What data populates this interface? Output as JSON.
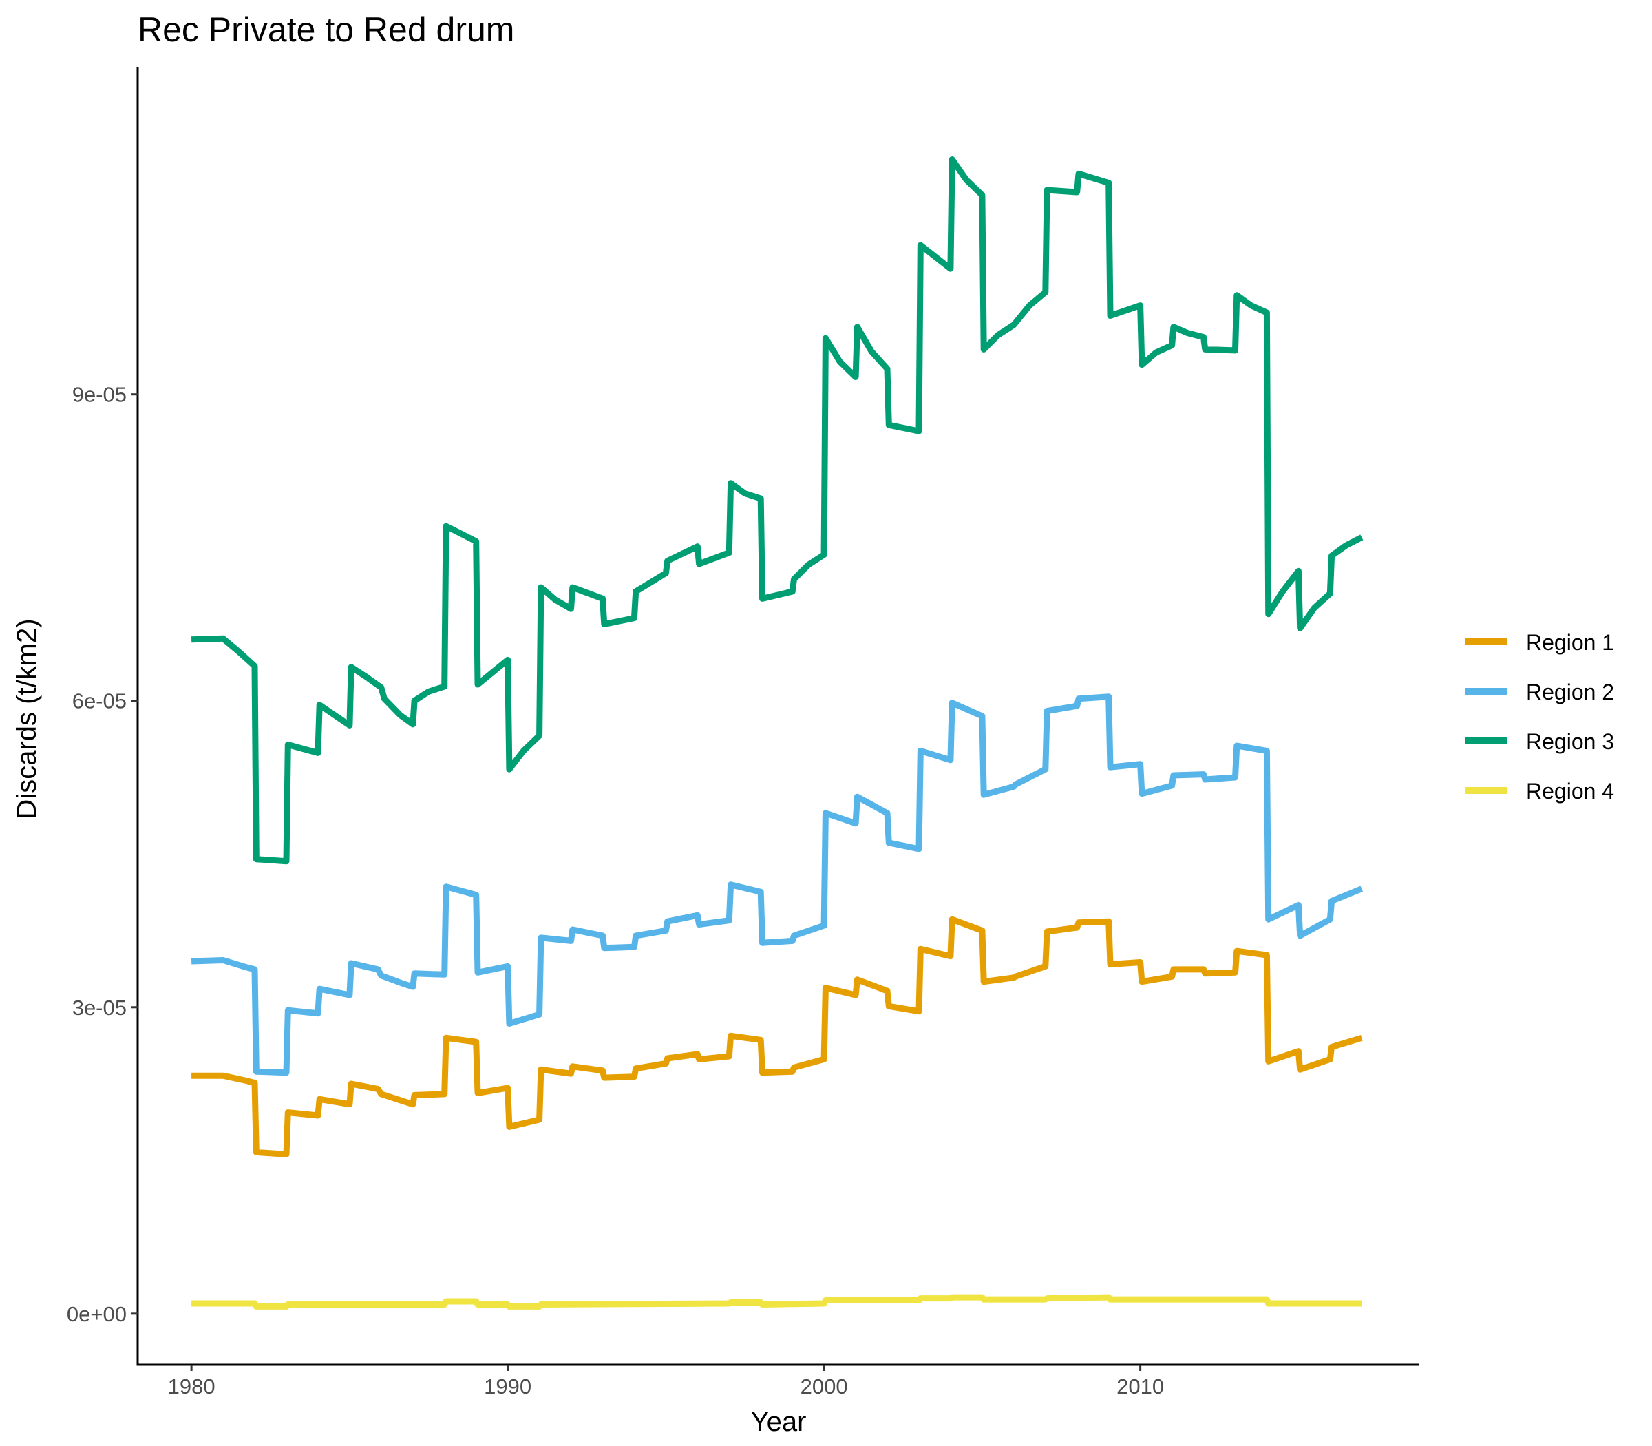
{
  "chart_data": {
    "type": "line",
    "title": "Rec Private to Red drum",
    "xlabel": "Year",
    "ylabel": "Discards (t/km2)",
    "xlim": [
      1978.3,
      2018.8
    ],
    "ylim": [
      -5e-06,
      0.000122
    ],
    "x_ticks": [
      {
        "value": 1980,
        "label": "1980"
      },
      {
        "value": 1990,
        "label": "1990"
      },
      {
        "value": 2000,
        "label": "2000"
      },
      {
        "value": 2010,
        "label": "2010"
      }
    ],
    "y_ticks": [
      {
        "value": 0,
        "label": "0e+00"
      },
      {
        "value": 3e-05,
        "label": "3e-05"
      },
      {
        "value": 6e-05,
        "label": "6e-05"
      },
      {
        "value": 9e-05,
        "label": "9e-05"
      }
    ],
    "grid": false,
    "legend": {
      "placement": "right"
    },
    "series": [
      {
        "name": "Region 1",
        "color": "#E69F00",
        "points": [
          [
            1980.0,
            2.33e-05
          ],
          [
            1981.0,
            2.33e-05
          ],
          [
            1981.75,
            2.28e-05
          ],
          [
            1982.0,
            2.26e-05
          ],
          [
            1982.05,
            1.58e-05
          ],
          [
            1983.0,
            1.56e-05
          ],
          [
            1983.05,
            1.97e-05
          ],
          [
            1984.0,
            1.94e-05
          ],
          [
            1984.05,
            2.1e-05
          ],
          [
            1985.0,
            2.05e-05
          ],
          [
            1985.05,
            2.25e-05
          ],
          [
            1985.9,
            2.2e-05
          ],
          [
            1986.0,
            2.15e-05
          ],
          [
            1986.7,
            2.08e-05
          ],
          [
            1987.0,
            2.05e-05
          ],
          [
            1987.05,
            2.14e-05
          ],
          [
            1988.0,
            2.15e-05
          ],
          [
            1988.05,
            2.7e-05
          ],
          [
            1989.0,
            2.66e-05
          ],
          [
            1989.05,
            2.16e-05
          ],
          [
            1990.0,
            2.21e-05
          ],
          [
            1990.05,
            1.83e-05
          ],
          [
            1991.0,
            1.9e-05
          ],
          [
            1991.05,
            2.39e-05
          ],
          [
            1992.0,
            2.35e-05
          ],
          [
            1992.05,
            2.42e-05
          ],
          [
            1993.0,
            2.38e-05
          ],
          [
            1993.05,
            2.31e-05
          ],
          [
            1994.0,
            2.32e-05
          ],
          [
            1994.05,
            2.4e-05
          ],
          [
            1995.0,
            2.45e-05
          ],
          [
            1995.05,
            2.5e-05
          ],
          [
            1996.0,
            2.54e-05
          ],
          [
            1996.05,
            2.49e-05
          ],
          [
            1997.0,
            2.52e-05
          ],
          [
            1997.05,
            2.72e-05
          ],
          [
            1998.0,
            2.68e-05
          ],
          [
            1998.05,
            2.36e-05
          ],
          [
            1999.0,
            2.37e-05
          ],
          [
            1999.05,
            2.41e-05
          ],
          [
            2000.0,
            2.49e-05
          ],
          [
            2000.05,
            3.19e-05
          ],
          [
            2001.0,
            3.12e-05
          ],
          [
            2001.05,
            3.27e-05
          ],
          [
            2002.0,
            3.16e-05
          ],
          [
            2002.05,
            3.01e-05
          ],
          [
            2003.0,
            2.96e-05
          ],
          [
            2003.05,
            3.57e-05
          ],
          [
            2004.0,
            3.5e-05
          ],
          [
            2004.05,
            3.86e-05
          ],
          [
            2005.0,
            3.75e-05
          ],
          [
            2005.05,
            3.25e-05
          ],
          [
            2006.0,
            3.29e-05
          ],
          [
            2006.05,
            3.3e-05
          ],
          [
            2007.0,
            3.4e-05
          ],
          [
            2007.05,
            3.74e-05
          ],
          [
            2008.0,
            3.78e-05
          ],
          [
            2008.05,
            3.83e-05
          ],
          [
            2009.0,
            3.84e-05
          ],
          [
            2009.05,
            3.42e-05
          ],
          [
            2010.0,
            3.44e-05
          ],
          [
            2010.05,
            3.25e-05
          ],
          [
            2011.0,
            3.3e-05
          ],
          [
            2011.05,
            3.37e-05
          ],
          [
            2012.0,
            3.37e-05
          ],
          [
            2012.05,
            3.33e-05
          ],
          [
            2013.0,
            3.34e-05
          ],
          [
            2013.05,
            3.55e-05
          ],
          [
            2014.0,
            3.51e-05
          ],
          [
            2014.05,
            2.47e-05
          ],
          [
            2015.0,
            2.57e-05
          ],
          [
            2015.05,
            2.39e-05
          ],
          [
            2016.0,
            2.49e-05
          ],
          [
            2016.05,
            2.61e-05
          ],
          [
            2017.0,
            2.7e-05
          ]
        ]
      },
      {
        "name": "Region 2",
        "color": "#56B4E9",
        "points": [
          [
            1980.0,
            3.45e-05
          ],
          [
            1981.0,
            3.46e-05
          ],
          [
            1981.75,
            3.39e-05
          ],
          [
            1982.0,
            3.37e-05
          ],
          [
            1982.05,
            2.37e-05
          ],
          [
            1983.0,
            2.36e-05
          ],
          [
            1983.05,
            2.97e-05
          ],
          [
            1984.0,
            2.94e-05
          ],
          [
            1984.05,
            3.18e-05
          ],
          [
            1985.0,
            3.12e-05
          ],
          [
            1985.05,
            3.43e-05
          ],
          [
            1985.9,
            3.37e-05
          ],
          [
            1986.0,
            3.31e-05
          ],
          [
            1986.7,
            3.23e-05
          ],
          [
            1987.0,
            3.2e-05
          ],
          [
            1987.05,
            3.33e-05
          ],
          [
            1988.0,
            3.32e-05
          ],
          [
            1988.05,
            4.18e-05
          ],
          [
            1989.0,
            4.1e-05
          ],
          [
            1989.05,
            3.34e-05
          ],
          [
            1990.0,
            3.4e-05
          ],
          [
            1990.05,
            2.84e-05
          ],
          [
            1991.0,
            2.93e-05
          ],
          [
            1991.05,
            3.68e-05
          ],
          [
            1992.0,
            3.65e-05
          ],
          [
            1992.05,
            3.76e-05
          ],
          [
            1993.0,
            3.7e-05
          ],
          [
            1993.05,
            3.58e-05
          ],
          [
            1994.0,
            3.59e-05
          ],
          [
            1994.05,
            3.7e-05
          ],
          [
            1995.0,
            3.75e-05
          ],
          [
            1995.05,
            3.84e-05
          ],
          [
            1996.0,
            3.9e-05
          ],
          [
            1996.05,
            3.81e-05
          ],
          [
            1997.0,
            3.85e-05
          ],
          [
            1997.05,
            4.2e-05
          ],
          [
            1998.0,
            4.13e-05
          ],
          [
            1998.05,
            3.63e-05
          ],
          [
            1999.0,
            3.65e-05
          ],
          [
            1999.05,
            3.7e-05
          ],
          [
            2000.0,
            3.8e-05
          ],
          [
            2000.05,
            4.9e-05
          ],
          [
            2001.0,
            4.8e-05
          ],
          [
            2001.05,
            5.06e-05
          ],
          [
            2002.0,
            4.9e-05
          ],
          [
            2002.05,
            4.61e-05
          ],
          [
            2003.0,
            4.55e-05
          ],
          [
            2003.05,
            5.51e-05
          ],
          [
            2004.0,
            5.42e-05
          ],
          [
            2004.05,
            5.98e-05
          ],
          [
            2005.0,
            5.85e-05
          ],
          [
            2005.05,
            5.08e-05
          ],
          [
            2006.0,
            5.16e-05
          ],
          [
            2006.05,
            5.18e-05
          ],
          [
            2007.0,
            5.33e-05
          ],
          [
            2007.05,
            5.9e-05
          ],
          [
            2008.0,
            5.95e-05
          ],
          [
            2008.05,
            6.02e-05
          ],
          [
            2009.0,
            6.04e-05
          ],
          [
            2009.05,
            5.35e-05
          ],
          [
            2010.0,
            5.38e-05
          ],
          [
            2010.05,
            5.09e-05
          ],
          [
            2011.0,
            5.17e-05
          ],
          [
            2011.05,
            5.27e-05
          ],
          [
            2012.0,
            5.28e-05
          ],
          [
            2012.05,
            5.23e-05
          ],
          [
            2013.0,
            5.25e-05
          ],
          [
            2013.05,
            5.56e-05
          ],
          [
            2014.0,
            5.51e-05
          ],
          [
            2014.05,
            3.86e-05
          ],
          [
            2015.0,
            4e-05
          ],
          [
            2015.05,
            3.7e-05
          ],
          [
            2016.0,
            3.86e-05
          ],
          [
            2016.05,
            4.04e-05
          ],
          [
            2017.0,
            4.16e-05
          ]
        ]
      },
      {
        "name": "Region 3",
        "color": "#009E73",
        "points": [
          [
            1980.0,
            6.6e-05
          ],
          [
            1981.0,
            6.61e-05
          ],
          [
            1981.5,
            6.48e-05
          ],
          [
            1982.0,
            6.34e-05
          ],
          [
            1982.05,
            4.45e-05
          ],
          [
            1983.0,
            4.43e-05
          ],
          [
            1983.05,
            5.57e-05
          ],
          [
            1984.0,
            5.49e-05
          ],
          [
            1984.05,
            5.96e-05
          ],
          [
            1985.0,
            5.76e-05
          ],
          [
            1985.05,
            6.33e-05
          ],
          [
            1985.5,
            6.24e-05
          ],
          [
            1986.0,
            6.13e-05
          ],
          [
            1986.1,
            6.02e-05
          ],
          [
            1986.6,
            5.86e-05
          ],
          [
            1987.0,
            5.77e-05
          ],
          [
            1987.05,
            6e-05
          ],
          [
            1987.5,
            6.09e-05
          ],
          [
            1988.0,
            6.14e-05
          ],
          [
            1988.05,
            7.71e-05
          ],
          [
            1988.5,
            7.64e-05
          ],
          [
            1989.0,
            7.56e-05
          ],
          [
            1989.05,
            6.16e-05
          ],
          [
            1990.0,
            6.4e-05
          ],
          [
            1990.05,
            5.33e-05
          ],
          [
            1990.5,
            5.51e-05
          ],
          [
            1991.0,
            5.66e-05
          ],
          [
            1991.05,
            7.11e-05
          ],
          [
            1991.5,
            6.99e-05
          ],
          [
            1992.0,
            6.9e-05
          ],
          [
            1992.05,
            7.11e-05
          ],
          [
            1993.0,
            7e-05
          ],
          [
            1993.05,
            6.75e-05
          ],
          [
            1994.0,
            6.81e-05
          ],
          [
            1994.05,
            7.07e-05
          ],
          [
            1995.0,
            7.25e-05
          ],
          [
            1995.05,
            7.37e-05
          ],
          [
            1996.0,
            7.51e-05
          ],
          [
            1996.05,
            7.34e-05
          ],
          [
            1997.0,
            7.45e-05
          ],
          [
            1997.05,
            8.13e-05
          ],
          [
            1997.5,
            8.03e-05
          ],
          [
            1998.0,
            7.98e-05
          ],
          [
            1998.05,
            7e-05
          ],
          [
            1999.0,
            7.07e-05
          ],
          [
            1999.05,
            7.19e-05
          ],
          [
            1999.5,
            7.33e-05
          ],
          [
            2000.0,
            7.43e-05
          ],
          [
            2000.05,
            9.55e-05
          ],
          [
            2000.5,
            9.32e-05
          ],
          [
            2001.0,
            9.17e-05
          ],
          [
            2001.05,
            9.66e-05
          ],
          [
            2001.5,
            9.42e-05
          ],
          [
            2002.0,
            9.25e-05
          ],
          [
            2002.05,
            8.7e-05
          ],
          [
            2003.0,
            8.64e-05
          ],
          [
            2003.05,
            0.0001046
          ],
          [
            2004.0,
            0.0001023
          ],
          [
            2004.05,
            0.000113
          ],
          [
            2004.5,
            0.000111
          ],
          [
            2005.0,
            0.0001095
          ],
          [
            2005.05,
            9.44e-05
          ],
          [
            2005.5,
            9.58e-05
          ],
          [
            2006.0,
            9.68e-05
          ],
          [
            2006.5,
            9.87e-05
          ],
          [
            2007.0,
            0.0001
          ],
          [
            2007.05,
            0.00011
          ],
          [
            2008.0,
            0.0001098
          ],
          [
            2008.05,
            0.0001116
          ],
          [
            2009.0,
            0.0001107
          ],
          [
            2009.05,
            9.77e-05
          ],
          [
            2010.0,
            9.87e-05
          ],
          [
            2010.05,
            9.29e-05
          ],
          [
            2010.5,
            9.41e-05
          ],
          [
            2011.0,
            9.48e-05
          ],
          [
            2011.05,
            9.66e-05
          ],
          [
            2011.5,
            9.6e-05
          ],
          [
            2012.0,
            9.56e-05
          ],
          [
            2012.05,
            9.44e-05
          ],
          [
            2013.0,
            9.43e-05
          ],
          [
            2013.05,
            9.97e-05
          ],
          [
            2013.5,
            9.87e-05
          ],
          [
            2014.0,
            9.8e-05
          ],
          [
            2014.05,
            6.85e-05
          ],
          [
            2014.5,
            7.07e-05
          ],
          [
            2015.0,
            7.27e-05
          ],
          [
            2015.05,
            6.71e-05
          ],
          [
            2015.5,
            6.91e-05
          ],
          [
            2016.0,
            7.05e-05
          ],
          [
            2016.05,
            7.42e-05
          ],
          [
            2016.5,
            7.52e-05
          ],
          [
            2017.0,
            7.6e-05
          ]
        ]
      },
      {
        "name": "Region 4",
        "color": "#F0E442",
        "points": [
          [
            1980.0,
            1e-06
          ],
          [
            1982.0,
            1e-06
          ],
          [
            1982.05,
            7e-07
          ],
          [
            1983.0,
            7e-07
          ],
          [
            1983.05,
            9e-07
          ],
          [
            1988.0,
            9e-07
          ],
          [
            1988.05,
            1.2e-06
          ],
          [
            1989.0,
            1.2e-06
          ],
          [
            1989.05,
            9e-07
          ],
          [
            1990.0,
            9e-07
          ],
          [
            1990.05,
            7e-07
          ],
          [
            1991.0,
            7e-07
          ],
          [
            1991.05,
            9e-07
          ],
          [
            1997.0,
            1e-06
          ],
          [
            1997.05,
            1.1e-06
          ],
          [
            1998.0,
            1.1e-06
          ],
          [
            1998.05,
            9e-07
          ],
          [
            2000.0,
            1e-06
          ],
          [
            2000.05,
            1.3e-06
          ],
          [
            2003.0,
            1.3e-06
          ],
          [
            2003.05,
            1.5e-06
          ],
          [
            2004.0,
            1.5e-06
          ],
          [
            2004.05,
            1.6e-06
          ],
          [
            2005.0,
            1.6e-06
          ],
          [
            2005.05,
            1.4e-06
          ],
          [
            2007.0,
            1.4e-06
          ],
          [
            2007.05,
            1.5e-06
          ],
          [
            2009.0,
            1.6e-06
          ],
          [
            2009.05,
            1.4e-06
          ],
          [
            2014.0,
            1.4e-06
          ],
          [
            2014.05,
            1e-06
          ],
          [
            2017.0,
            1e-06
          ]
        ]
      }
    ]
  }
}
